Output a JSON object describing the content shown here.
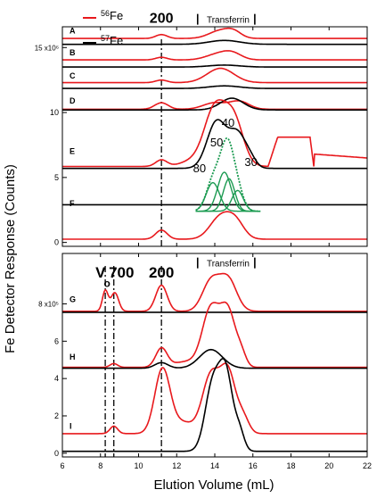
{
  "chart_data": {
    "type": "line",
    "xlabel": "Elution Volume (mL)",
    "ylabel": "Fe Detector Response (Counts)",
    "xlim": [
      6,
      22
    ],
    "x_ticks": [
      "6",
      "8",
      "10",
      "12",
      "14",
      "16",
      "18",
      "20",
      "22"
    ],
    "colors": {
      "Fe56": "#e8191d",
      "Fe57": "#000000",
      "fit": "#1a9a50",
      "fit_data": "#1a9a50"
    },
    "legend": [
      {
        "label_prefix": "56",
        "label_suffix": "Fe",
        "color": "#e8191d"
      },
      {
        "label_prefix": "57",
        "label_suffix": "Fe",
        "color": "#000000"
      }
    ],
    "panels": [
      {
        "name": "top",
        "ylim": [
          -0.3,
          16.6
        ],
        "y_ticks": [
          {
            "v": 15,
            "label": "15 x10⁶"
          },
          {
            "v": 10,
            "label": "10"
          },
          {
            "v": 5,
            "label": "5"
          },
          {
            "v": 0,
            "label": "0"
          }
        ],
        "annotations": [
          {
            "text": "200",
            "x": 11.2,
            "y": 16.9,
            "bold": true
          },
          {
            "text": "Transferrin",
            "x": 14.7,
            "y": 16.9
          }
        ],
        "bracket": {
          "x1": 13.1,
          "x2": 16.1,
          "y": 16.9
        },
        "dashlines": [
          11.2
        ],
        "row_labels": [
          {
            "text": "A",
            "y": 16.1
          },
          {
            "text": "B",
            "y": 14.4
          },
          {
            "text": "C",
            "y": 12.6
          },
          {
            "text": "D",
            "y": 10.7
          },
          {
            "text": "E",
            "y": 6.8
          },
          {
            "text": "F",
            "y": 2.8
          }
        ],
        "series": [
          {
            "color": "Fe56",
            "base": 15.7,
            "peaks": [
              [
                11.2,
                0.3,
                0.3
              ],
              [
                14.3,
                0.6,
                0.6
              ],
              [
                15.0,
                0.4,
                0.4
              ]
            ]
          },
          {
            "color": "Fe57",
            "base": 15.25,
            "peaks": [
              [
                14.5,
                0.3,
                0.8
              ]
            ]
          },
          {
            "color": "Fe56",
            "base": 14.05,
            "peaks": [
              [
                11.2,
                0.2,
                0.3
              ],
              [
                14.1,
                0.4,
                0.6
              ],
              [
                14.9,
                0.5,
                0.5
              ]
            ]
          },
          {
            "color": "Fe57",
            "base": 13.5,
            "peaks": [
              [
                14.5,
                0.15,
                0.8
              ]
            ]
          },
          {
            "color": "Fe56",
            "base": 12.3,
            "peaks": [
              [
                11.2,
                0.2,
                0.3
              ],
              [
                14.3,
                1.1,
                0.7
              ]
            ]
          },
          {
            "color": "Fe57",
            "base": 11.85,
            "peaks": [
              [
                14.5,
                0.2,
                0.8
              ]
            ]
          },
          {
            "color": "Fe56",
            "base": 10.25,
            "peaks": [
              [
                11.2,
                0.5,
                0.35
              ],
              [
                14.0,
                0.5,
                0.6
              ],
              [
                15.3,
                0.6,
                0.5
              ]
            ]
          },
          {
            "color": "Fe57",
            "base": 10.2,
            "peaks": [
              [
                14.9,
                0.9,
                0.6
              ]
            ]
          },
          {
            "color": "Fe56",
            "base": 5.85,
            "peaks": [
              [
                11.2,
                0.5,
                0.3
              ],
              [
                14.0,
                4.4,
                0.55
              ],
              [
                15.0,
                3.5,
                0.5
              ],
              [
                12.8,
                0.4,
                0.6
              ]
            ],
            "plateau": [
              16.8,
              17.3,
              19.0,
              19.2,
              8.1
            ],
            "tail": [
              19.2,
              22,
              6.8,
              6.5
            ]
          },
          {
            "color": "Fe57",
            "base": 5.7,
            "peaks": [
              [
                14.1,
                3.6,
                0.5
              ],
              [
                15.2,
                2.6,
                0.45
              ],
              [
                15.9,
                0.5,
                0.3
              ]
            ]
          },
          {
            "color": "Fe57",
            "base": 2.9,
            "peaks": []
          },
          {
            "color": "Fe56",
            "base": 0.25,
            "peaks": [
              [
                11.2,
                0.7,
                0.3
              ],
              [
                14.3,
                1.7,
                0.55
              ],
              [
                15.1,
                1.2,
                0.45
              ]
            ]
          }
        ],
        "fit": {
          "y_offset": 2.4,
          "x_range": [
            13.0,
            16.4
          ],
          "components": [
            [
              13.9,
              2.2,
              0.35
            ],
            [
              14.5,
              3.0,
              0.35
            ],
            [
              14.75,
              2.5,
              0.3
            ],
            [
              15.2,
              1.6,
              0.3
            ]
          ],
          "labels": [
            {
              "text": "80",
              "x": 13.2,
              "y": 5.4
            },
            {
              "text": "50",
              "x": 14.1,
              "y": 7.4
            },
            {
              "text": "40",
              "x": 14.7,
              "y": 8.9
            },
            {
              "text": "30",
              "x": 15.9,
              "y": 5.9
            }
          ]
        }
      },
      {
        "name": "bottom",
        "ylim": [
          -0.2,
          10.7
        ],
        "y_ticks": [
          {
            "v": 8,
            "label": "8 x10⁵"
          },
          {
            "v": 6,
            "label": "6"
          },
          {
            "v": 4,
            "label": "4"
          },
          {
            "v": 2,
            "label": "2"
          },
          {
            "v": 0,
            "label": "0"
          }
        ],
        "annotations": [
          {
            "text": "V",
            "x": 8.0,
            "y": 9.4,
            "bold": true,
            "size": 17
          },
          {
            "text": "o",
            "x": 8.35,
            "y": 8.9,
            "bold": true,
            "size": 12
          },
          {
            "text": "700",
            "x": 9.1,
            "y": 9.4,
            "bold": true,
            "size": 17
          },
          {
            "text": "200",
            "x": 11.2,
            "y": 9.4,
            "bold": true,
            "size": 17
          },
          {
            "text": "Transferrin",
            "x": 14.7,
            "y": 10.0
          }
        ],
        "bracket": {
          "x1": 13.1,
          "x2": 16.1,
          "y": 10.0
        },
        "dashlines": [
          8.25,
          8.7,
          11.2
        ],
        "row_labels": [
          {
            "text": "G",
            "y": 8.1
          },
          {
            "text": "H",
            "y": 5.0
          },
          {
            "text": "I",
            "y": 1.3
          }
        ],
        "series": [
          {
            "color": "Fe56",
            "base": 7.6,
            "peaks": [
              [
                8.25,
                1.1,
                0.15
              ],
              [
                8.75,
                1.0,
                0.2
              ],
              [
                11.2,
                1.4,
                0.3
              ],
              [
                13.8,
                1.6,
                0.45
              ],
              [
                14.7,
                1.7,
                0.45
              ]
            ]
          },
          {
            "color": "Fe57",
            "base": 7.55,
            "peaks": []
          },
          {
            "color": "Fe56",
            "base": 4.6,
            "peaks": [
              [
                8.7,
                0.2,
                0.2
              ],
              [
                11.2,
                1.0,
                0.3
              ],
              [
                12.5,
                0.3,
                0.7
              ],
              [
                13.8,
                3.1,
                0.45
              ],
              [
                14.7,
                2.9,
                0.4
              ],
              [
                15.4,
                0.6,
                0.25
              ]
            ]
          },
          {
            "color": "Fe57",
            "base": 4.55,
            "peaks": [
              [
                11.2,
                0.3,
                0.35
              ],
              [
                13.8,
                1.0,
                0.6
              ]
            ]
          },
          {
            "color": "Fe56",
            "base": 1.05,
            "peaks": [
              [
                8.7,
                0.4,
                0.2
              ],
              [
                11.25,
                3.4,
                0.4
              ],
              [
                12.3,
                0.6,
                0.6
              ],
              [
                13.8,
                3.1,
                0.45
              ],
              [
                14.7,
                3.2,
                0.4
              ],
              [
                15.5,
                0.8,
                0.3
              ]
            ]
          },
          {
            "color": "Fe57",
            "base": 0.1,
            "peaks": [
              [
                13.9,
                3.6,
                0.4
              ],
              [
                14.6,
                3.9,
                0.35
              ],
              [
                15.3,
                1.0,
                0.25
              ]
            ]
          }
        ]
      }
    ]
  }
}
